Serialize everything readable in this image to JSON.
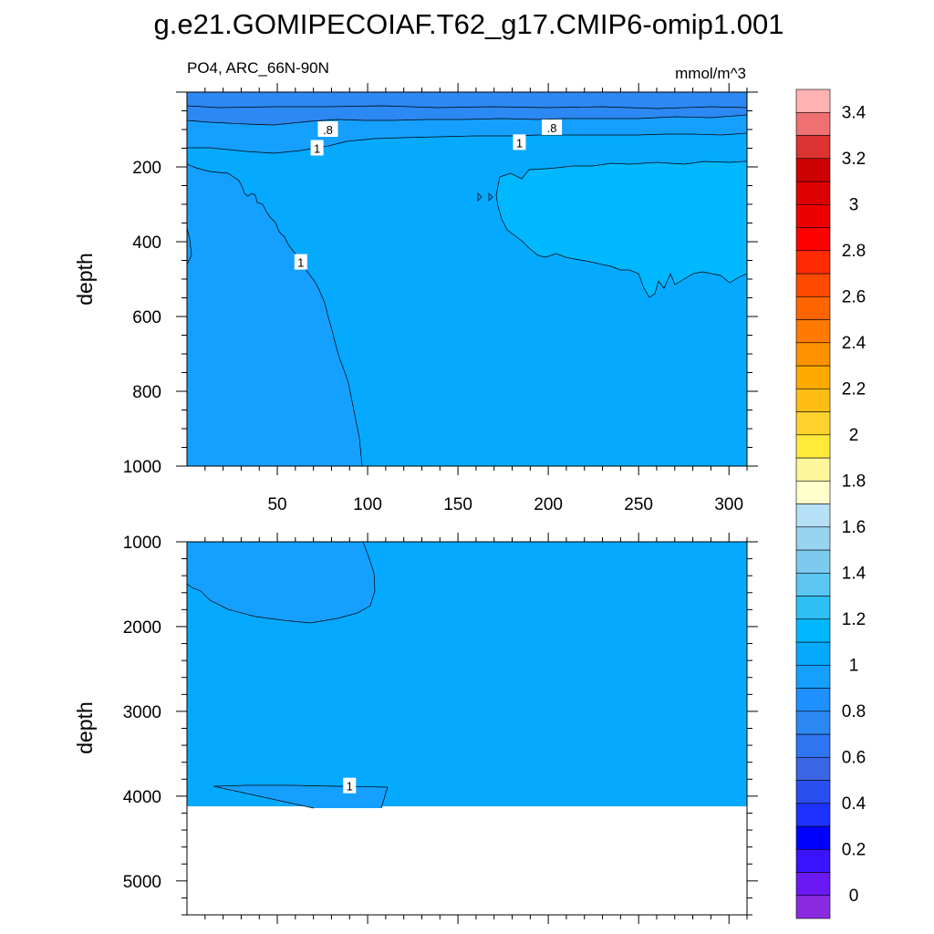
{
  "title": "g.e21.GOMIPECOIAF.T62_g17.CMIP6-omip1.001",
  "subtitle_left": "PO4, ARC_66N-90N",
  "subtitle_right": "mmol/m^3",
  "colors": {
    "surface_band": "#2c88f2",
    "band_0_8": "#1e90ff",
    "band_0_9": "#15a0ff",
    "band_1_0": "#05aaff",
    "band_1_1": "#00b8ff",
    "missing": "#ffffff"
  },
  "chart_data": [
    {
      "type": "heatmap",
      "panel": "upper",
      "variable": "PO4",
      "region": "ARC_66N-90N",
      "units": "mmol/m^3",
      "xlabel": "",
      "ylabel": "depth",
      "xlim": [
        0,
        310
      ],
      "ylim": [
        1000,
        0
      ],
      "x_ticks": [
        50,
        100,
        150,
        200,
        250,
        300
      ],
      "y_ticks": [
        200,
        400,
        600,
        800,
        1000
      ],
      "contour_labels": [
        {
          "text": ".8",
          "x": 78,
          "y": 100
        },
        {
          "text": ".8",
          "x": 202,
          "y": 95
        },
        {
          "text": "1",
          "x": 72,
          "y": 150
        },
        {
          "text": "1",
          "x": 184,
          "y": 135
        },
        {
          "text": "1",
          "x": 63,
          "y": 455
        }
      ]
    },
    {
      "type": "heatmap",
      "panel": "lower",
      "variable": "PO4",
      "region": "ARC_66N-90N",
      "units": "mmol/m^3",
      "xlabel": "",
      "ylabel": "depth",
      "xlim": [
        0,
        310
      ],
      "ylim": [
        5400,
        1000
      ],
      "x_ticks": [
        50,
        100,
        150,
        200,
        250,
        300
      ],
      "y_ticks": [
        1000,
        2000,
        3000,
        4000,
        5000
      ],
      "bottom_of_data_depth": 4120,
      "contour_labels": [
        {
          "text": "1",
          "x": 90,
          "y": 3880
        }
      ]
    }
  ],
  "colorbar": {
    "labels": [
      "0",
      "0.2",
      "0.4",
      "0.6",
      "0.8",
      "1",
      "1.2",
      "1.4",
      "1.6",
      "1.8",
      "2",
      "2.2",
      "2.4",
      "2.6",
      "2.8",
      "3",
      "3.2",
      "3.4"
    ],
    "colors": [
      "#8a2be2",
      "#6a19f2",
      "#3b14ff",
      "#0000ff",
      "#1e32ff",
      "#2b4ef0",
      "#3a66e6",
      "#2f74f0",
      "#2c88f2",
      "#1e90ff",
      "#15a0ff",
      "#05aaff",
      "#00b8ff",
      "#2ec0f5",
      "#5cc6f2",
      "#7ccbee",
      "#98d3ef",
      "#b5e0f5",
      "#ffffcc",
      "#fff59a",
      "#ffea3c",
      "#ffd22e",
      "#ffbe14",
      "#ffaa00",
      "#ff9200",
      "#ff7a00",
      "#ff6400",
      "#ff4a00",
      "#ff2a00",
      "#ff0000",
      "#ee0000",
      "#dd0000",
      "#cc0000",
      "#dd3333",
      "#ee7070",
      "#ffb3b3"
    ]
  }
}
